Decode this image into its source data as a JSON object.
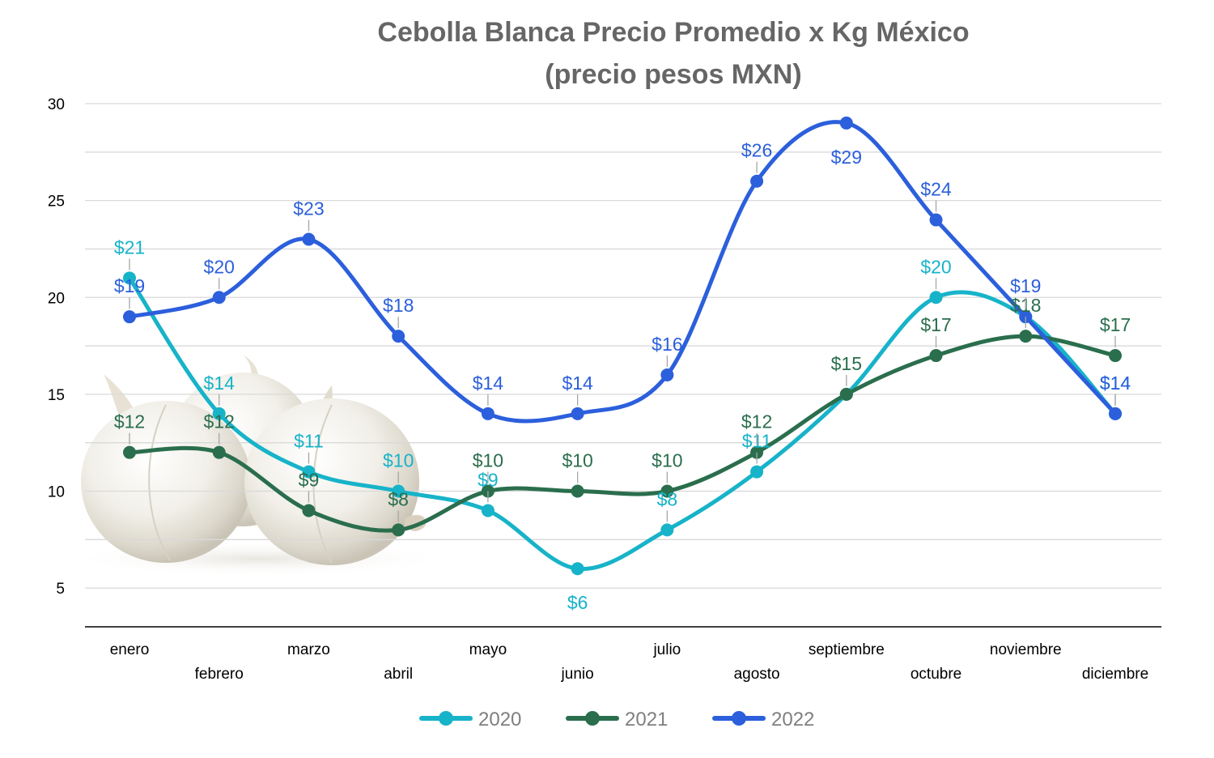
{
  "chart_data": {
    "type": "line",
    "title": "Cebolla Blanca Precio Promedio x Kg México",
    "subtitle": "(precio pesos MXN)",
    "xlabel": "",
    "ylabel": "",
    "categories": [
      "enero",
      "febrero",
      "marzo",
      "abril",
      "mayo",
      "junio",
      "julio",
      "agosto",
      "septiembre",
      "octubre",
      "noviembre",
      "diciembre"
    ],
    "ylim": [
      3,
      30
    ],
    "yticks": [
      5,
      10,
      15,
      20,
      25,
      30
    ],
    "grid": true,
    "legend_position": "bottom",
    "series": [
      {
        "name": "2020",
        "color": "#17b3c9",
        "values": [
          21,
          14,
          11,
          10,
          9,
          6,
          8,
          11,
          15,
          20,
          19,
          14
        ],
        "labels": [
          "$21",
          "$14",
          "$11",
          "$10",
          "$9",
          "$6",
          "$8",
          "$11",
          "",
          "$20",
          "",
          "$14"
        ]
      },
      {
        "name": "2021",
        "color": "#2a6e4d",
        "values": [
          12,
          12,
          9,
          8,
          10,
          10,
          10,
          12,
          15,
          17,
          18,
          17
        ],
        "labels": [
          "$12",
          "$12",
          "$9",
          "$8",
          "$10",
          "$10",
          "$10",
          "$12",
          "$15",
          "$17",
          "$18",
          "$17"
        ]
      },
      {
        "name": "2022",
        "color": "#2c5fdc",
        "values": [
          19,
          20,
          23,
          18,
          14,
          14,
          16,
          26,
          29,
          24,
          19,
          14
        ],
        "labels": [
          "$19",
          "$20",
          "$23",
          "$18",
          "$14",
          "$14",
          "$16",
          "$26",
          "$29",
          "$24",
          "$19",
          "$14"
        ]
      }
    ]
  }
}
